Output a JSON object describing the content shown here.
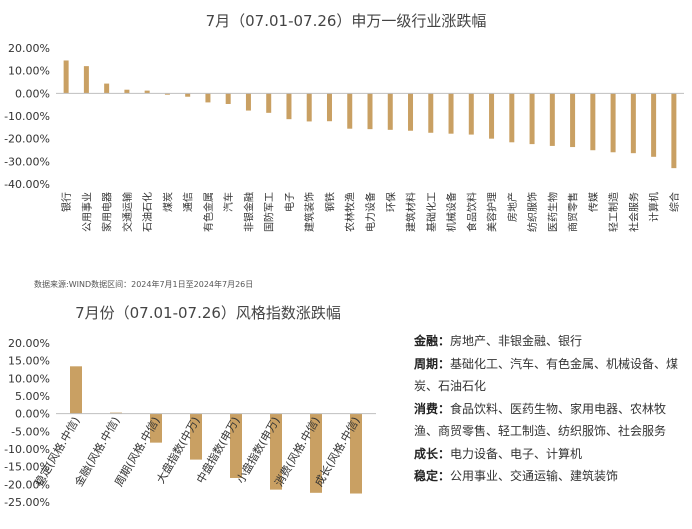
{
  "chart_data": [
    {
      "type": "bar",
      "title": "7月（07.01-07.26）申万一级行业涨跌幅",
      "ylim": [
        -40,
        20
      ],
      "yticks": [
        "20.00%",
        "10.00%",
        "0.00%",
        "-10.00%",
        "-20.00%",
        "-30.00%",
        "-40.00%"
      ],
      "grid": false,
      "color": "#C9A063",
      "categories": [
        "银行",
        "公用事业",
        "家用电器",
        "交通运输",
        "石油石化",
        "煤炭",
        "通信",
        "有色金属",
        "汽车",
        "非银金融",
        "国防军工",
        "电子",
        "建筑装饰",
        "钢铁",
        "农林牧渔",
        "电力设备",
        "环保",
        "建筑材料",
        "基础化工",
        "机械设备",
        "食品饮料",
        "美容护理",
        "房地产",
        "纺织服饰",
        "医药生物",
        "商贸零售",
        "传媒",
        "轻工制造",
        "社会服务",
        "计算机",
        "综合"
      ],
      "values": [
        14.5,
        12.0,
        4.3,
        1.6,
        1.2,
        -0.6,
        -1.5,
        -4.0,
        -4.7,
        -7.6,
        -8.6,
        -11.4,
        -12.4,
        -12.3,
        -15.6,
        -15.8,
        -16.1,
        -16.5,
        -17.4,
        -17.8,
        -18.2,
        -20.0,
        -21.6,
        -22.4,
        -23.2,
        -23.7,
        -25.1,
        -26.0,
        -26.4,
        -28.0,
        -33.0
      ]
    },
    {
      "type": "bar",
      "title": "7月份（07.01-07.26）风格指数涨跌幅",
      "ylim": [
        -25,
        20
      ],
      "yticks": [
        "20.00%",
        "15.00%",
        "10.00%",
        "5.00%",
        "0.00%",
        "-5.00%",
        "-10.00%",
        "-15.00%",
        "-20.00%",
        "-25.00%"
      ],
      "grid": false,
      "color": "#C9A063",
      "categories": [
        "稳定(风格.中信)",
        "金融(风格.中信)",
        "周期(风格.中信)",
        "大盘指数(中万)",
        "中盘指数(申万)",
        "小盘指数(申万)",
        "消费(风格.中信)",
        "成长(风格.中信)"
      ],
      "values": [
        13.4,
        0.3,
        -8.2,
        -13.0,
        -18.2,
        -21.5,
        -22.4,
        -22.6
      ]
    }
  ],
  "source_note": "数据来源:WIND数据区间：2024年7月1日至2024年7月26日",
  "legend": [
    {
      "label": "金融",
      "text": "房地产、非银金融、银行"
    },
    {
      "label": "周期",
      "text": "基础化工、汽车、有色金属、机械设备、煤炭、石油石化"
    },
    {
      "label": "消费",
      "text": "食品饮料、医药生物、家用电器、农林牧渔、商贸零售、轻工制造、纺织服饰、社会服务"
    },
    {
      "label": "成长",
      "text": "电力设备、电子、计算机"
    },
    {
      "label": "稳定",
      "text": "公用事业、交通运输、建筑装饰"
    }
  ]
}
